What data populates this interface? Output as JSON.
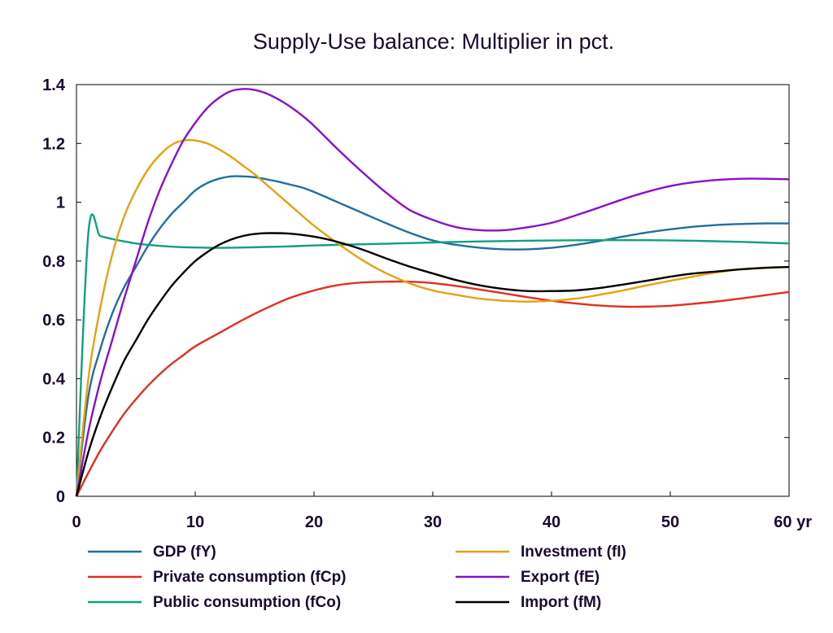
{
  "chart_data": {
    "type": "line",
    "title": "Supply-Use balance: Multiplier in pct.",
    "x_unit_label": "yr",
    "xlim": [
      0,
      60
    ],
    "ylim": [
      0,
      1.4
    ],
    "x_ticks": [
      0,
      10,
      20,
      30,
      40,
      50,
      60
    ],
    "x_tick_labels": [
      "0",
      "10",
      "20",
      "30",
      "40",
      "50",
      "60 yr"
    ],
    "y_ticks": [
      0,
      0.2,
      0.4,
      0.6,
      0.8,
      1,
      1.2,
      1.4
    ],
    "y_tick_labels": [
      "0",
      "0.2",
      "0.4",
      "0.6",
      "0.8",
      "1",
      "1.2",
      "1.4"
    ],
    "grid": false,
    "legend_position": "bottom",
    "series": [
      {
        "name": "GDP (fY)",
        "color": "#1f6fa3",
        "points": [
          [
            0,
            0
          ],
          [
            1,
            0.34
          ],
          [
            2,
            0.5
          ],
          [
            3,
            0.62
          ],
          [
            4,
            0.71
          ],
          [
            5,
            0.78
          ],
          [
            6,
            0.85
          ],
          [
            7,
            0.91
          ],
          [
            8,
            0.96
          ],
          [
            9,
            1.0
          ],
          [
            10,
            1.04
          ],
          [
            11,
            1.065
          ],
          [
            12,
            1.08
          ],
          [
            13,
            1.088
          ],
          [
            14,
            1.088
          ],
          [
            15,
            1.085
          ],
          [
            16,
            1.078
          ],
          [
            17,
            1.07
          ],
          [
            18,
            1.06
          ],
          [
            19,
            1.05
          ],
          [
            20,
            1.035
          ],
          [
            22,
            1.0
          ],
          [
            24,
            0.965
          ],
          [
            26,
            0.93
          ],
          [
            28,
            0.897
          ],
          [
            30,
            0.87
          ],
          [
            32,
            0.855
          ],
          [
            34,
            0.845
          ],
          [
            36,
            0.84
          ],
          [
            38,
            0.84
          ],
          [
            40,
            0.845
          ],
          [
            42,
            0.855
          ],
          [
            44,
            0.868
          ],
          [
            46,
            0.883
          ],
          [
            48,
            0.897
          ],
          [
            50,
            0.908
          ],
          [
            52,
            0.917
          ],
          [
            54,
            0.923
          ],
          [
            56,
            0.926
          ],
          [
            58,
            0.928
          ],
          [
            60,
            0.928
          ]
        ]
      },
      {
        "name": "Private consumption (fCp)",
        "color": "#e03020",
        "points": [
          [
            0,
            0
          ],
          [
            1,
            0.08
          ],
          [
            2,
            0.155
          ],
          [
            3,
            0.22
          ],
          [
            4,
            0.28
          ],
          [
            5,
            0.33
          ],
          [
            6,
            0.375
          ],
          [
            7,
            0.415
          ],
          [
            8,
            0.45
          ],
          [
            9,
            0.48
          ],
          [
            10,
            0.51
          ],
          [
            12,
            0.555
          ],
          [
            14,
            0.6
          ],
          [
            16,
            0.64
          ],
          [
            18,
            0.675
          ],
          [
            20,
            0.7
          ],
          [
            22,
            0.718
          ],
          [
            24,
            0.727
          ],
          [
            26,
            0.73
          ],
          [
            28,
            0.73
          ],
          [
            30,
            0.725
          ],
          [
            32,
            0.715
          ],
          [
            34,
            0.703
          ],
          [
            36,
            0.69
          ],
          [
            38,
            0.677
          ],
          [
            40,
            0.665
          ],
          [
            42,
            0.656
          ],
          [
            44,
            0.649
          ],
          [
            46,
            0.645
          ],
          [
            48,
            0.645
          ],
          [
            50,
            0.648
          ],
          [
            52,
            0.655
          ],
          [
            54,
            0.663
          ],
          [
            56,
            0.673
          ],
          [
            58,
            0.684
          ],
          [
            60,
            0.695
          ]
        ]
      },
      {
        "name": "Public consumption (fCo)",
        "color": "#10a080",
        "points": [
          [
            0,
            0
          ],
          [
            1,
            0.895
          ],
          [
            2,
            0.885
          ],
          [
            3,
            0.875
          ],
          [
            4,
            0.867
          ],
          [
            5,
            0.86
          ],
          [
            6,
            0.855
          ],
          [
            8,
            0.849
          ],
          [
            10,
            0.846
          ],
          [
            12,
            0.845
          ],
          [
            14,
            0.846
          ],
          [
            16,
            0.848
          ],
          [
            18,
            0.85
          ],
          [
            20,
            0.853
          ],
          [
            24,
            0.857
          ],
          [
            28,
            0.861
          ],
          [
            32,
            0.865
          ],
          [
            36,
            0.868
          ],
          [
            40,
            0.87
          ],
          [
            44,
            0.871
          ],
          [
            48,
            0.871
          ],
          [
            52,
            0.869
          ],
          [
            56,
            0.865
          ],
          [
            60,
            0.86
          ]
        ]
      },
      {
        "name": "Investment (fI)",
        "color": "#e8a010",
        "points": [
          [
            0,
            0
          ],
          [
            1,
            0.4
          ],
          [
            2,
            0.64
          ],
          [
            3,
            0.82
          ],
          [
            4,
            0.95
          ],
          [
            5,
            1.04
          ],
          [
            6,
            1.11
          ],
          [
            7,
            1.16
          ],
          [
            8,
            1.195
          ],
          [
            9,
            1.21
          ],
          [
            10,
            1.21
          ],
          [
            11,
            1.2
          ],
          [
            12,
            1.18
          ],
          [
            13,
            1.155
          ],
          [
            14,
            1.125
          ],
          [
            15,
            1.095
          ],
          [
            16,
            1.06
          ],
          [
            18,
            0.99
          ],
          [
            20,
            0.92
          ],
          [
            22,
            0.86
          ],
          [
            24,
            0.805
          ],
          [
            26,
            0.76
          ],
          [
            28,
            0.725
          ],
          [
            30,
            0.7
          ],
          [
            32,
            0.685
          ],
          [
            34,
            0.672
          ],
          [
            36,
            0.665
          ],
          [
            38,
            0.662
          ],
          [
            40,
            0.665
          ],
          [
            42,
            0.672
          ],
          [
            44,
            0.685
          ],
          [
            46,
            0.7
          ],
          [
            48,
            0.717
          ],
          [
            50,
            0.733
          ],
          [
            52,
            0.748
          ],
          [
            54,
            0.762
          ],
          [
            56,
            0.772
          ],
          [
            58,
            0.778
          ],
          [
            60,
            0.78
          ]
        ]
      },
      {
        "name": "Export (fE)",
        "color": "#8a10c8",
        "points": [
          [
            0,
            0
          ],
          [
            1,
            0.22
          ],
          [
            2,
            0.39
          ],
          [
            3,
            0.53
          ],
          [
            4,
            0.67
          ],
          [
            5,
            0.8
          ],
          [
            6,
            0.93
          ],
          [
            7,
            1.04
          ],
          [
            8,
            1.13
          ],
          [
            9,
            1.21
          ],
          [
            10,
            1.27
          ],
          [
            11,
            1.32
          ],
          [
            12,
            1.355
          ],
          [
            13,
            1.378
          ],
          [
            14,
            1.385
          ],
          [
            15,
            1.382
          ],
          [
            16,
            1.37
          ],
          [
            17,
            1.35
          ],
          [
            18,
            1.325
          ],
          [
            19,
            1.295
          ],
          [
            20,
            1.26
          ],
          [
            22,
            1.18
          ],
          [
            24,
            1.105
          ],
          [
            26,
            1.035
          ],
          [
            28,
            0.975
          ],
          [
            30,
            0.94
          ],
          [
            32,
            0.915
          ],
          [
            34,
            0.905
          ],
          [
            36,
            0.905
          ],
          [
            38,
            0.915
          ],
          [
            40,
            0.93
          ],
          [
            42,
            0.955
          ],
          [
            44,
            0.982
          ],
          [
            46,
            1.01
          ],
          [
            48,
            1.035
          ],
          [
            50,
            1.055
          ],
          [
            52,
            1.068
          ],
          [
            54,
            1.076
          ],
          [
            56,
            1.08
          ],
          [
            58,
            1.08
          ],
          [
            60,
            1.078
          ]
        ]
      },
      {
        "name": "Import (fM)",
        "color": "#000000",
        "points": [
          [
            0,
            0
          ],
          [
            1,
            0.15
          ],
          [
            2,
            0.27
          ],
          [
            3,
            0.37
          ],
          [
            4,
            0.46
          ],
          [
            5,
            0.53
          ],
          [
            6,
            0.6
          ],
          [
            7,
            0.66
          ],
          [
            8,
            0.715
          ],
          [
            9,
            0.76
          ],
          [
            10,
            0.8
          ],
          [
            11,
            0.83
          ],
          [
            12,
            0.855
          ],
          [
            13,
            0.873
          ],
          [
            14,
            0.885
          ],
          [
            15,
            0.892
          ],
          [
            16,
            0.895
          ],
          [
            18,
            0.893
          ],
          [
            20,
            0.883
          ],
          [
            22,
            0.865
          ],
          [
            24,
            0.84
          ],
          [
            26,
            0.81
          ],
          [
            28,
            0.782
          ],
          [
            30,
            0.758
          ],
          [
            32,
            0.735
          ],
          [
            34,
            0.717
          ],
          [
            36,
            0.705
          ],
          [
            38,
            0.698
          ],
          [
            40,
            0.698
          ],
          [
            42,
            0.7
          ],
          [
            44,
            0.708
          ],
          [
            46,
            0.72
          ],
          [
            48,
            0.733
          ],
          [
            50,
            0.747
          ],
          [
            52,
            0.758
          ],
          [
            54,
            0.765
          ],
          [
            56,
            0.772
          ],
          [
            58,
            0.777
          ],
          [
            60,
            0.78
          ]
        ]
      }
    ]
  }
}
